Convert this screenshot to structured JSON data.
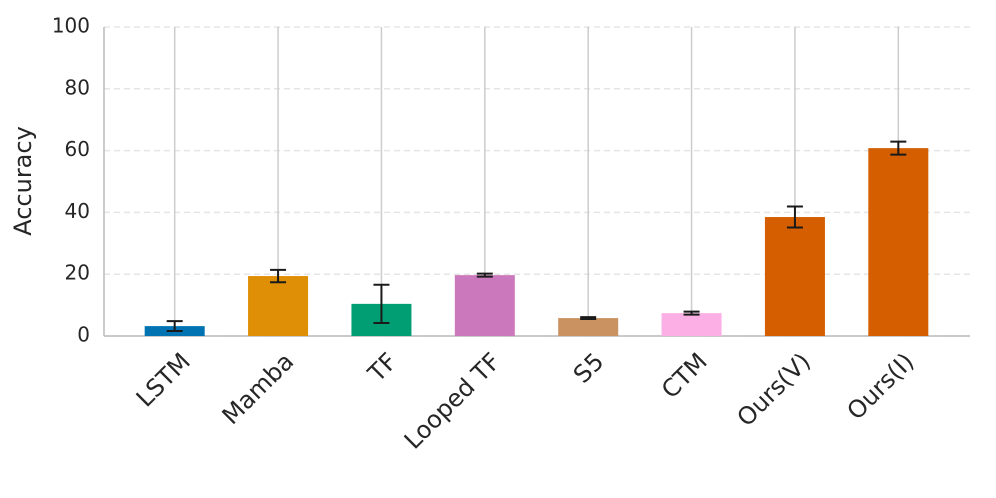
{
  "chart_data": {
    "type": "bar",
    "ylabel": "Accuracy",
    "categories": [
      "LSTM",
      "Mamba",
      "TF",
      "Looped TF",
      "S5",
      "CTM",
      "Ours(V)",
      "Ours(I)"
    ],
    "values": [
      3.2,
      19.4,
      10.4,
      19.7,
      5.8,
      7.4,
      38.5,
      60.8
    ],
    "errors": [
      1.6,
      2.0,
      6.2,
      0.5,
      0.3,
      0.5,
      3.4,
      2.1
    ],
    "colors": [
      "#0173b2",
      "#de8f05",
      "#029e73",
      "#cc78bc",
      "#ca9161",
      "#fbafe4",
      "#d55e00",
      "#d55e00"
    ],
    "ylim": [
      0,
      100
    ],
    "yticks": [
      0,
      20,
      40,
      60,
      80,
      100
    ],
    "grid": true
  }
}
